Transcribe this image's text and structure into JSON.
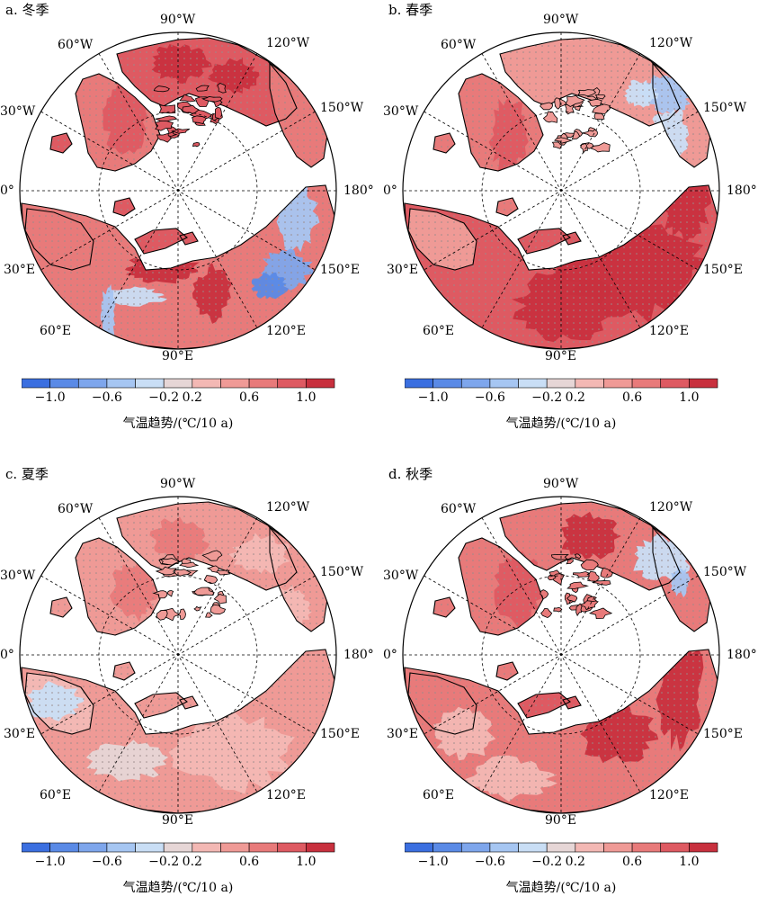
{
  "panels": [
    {
      "title": "a. 冬季",
      "season": "winter"
    },
    {
      "title": "b. 春季",
      "season": "spring"
    },
    {
      "title": "c. 夏季",
      "season": "summer"
    },
    {
      "title": "d. 秋季",
      "season": "autumn"
    }
  ],
  "lon_labels": {
    "w90": "90°W",
    "w120": "120°W",
    "w60": "60°W",
    "w150": "150°W",
    "w30": "30°W",
    "zero": "0°",
    "e180": "180°",
    "e30": "30°E",
    "e150": "150°E",
    "e60": "60°E",
    "e120": "120°E",
    "e90": "90°E"
  },
  "colorbar": {
    "label": "气温趋势/(℃/10 a)",
    "ticks": [
      "−1.0",
      "−0.6",
      "−0.2",
      "0.2",
      "0.6",
      "1.0"
    ],
    "colors": [
      "#3b6fe0",
      "#5a8ae6",
      "#7ea6ec",
      "#a6c6f2",
      "#c9def5",
      "#e6d6d6",
      "#f3b8b4",
      "#ef9a96",
      "#e87a7a",
      "#de5a62",
      "#c8303e"
    ]
  },
  "legend_meaning": {
    "dots": "stippling"
  }
}
